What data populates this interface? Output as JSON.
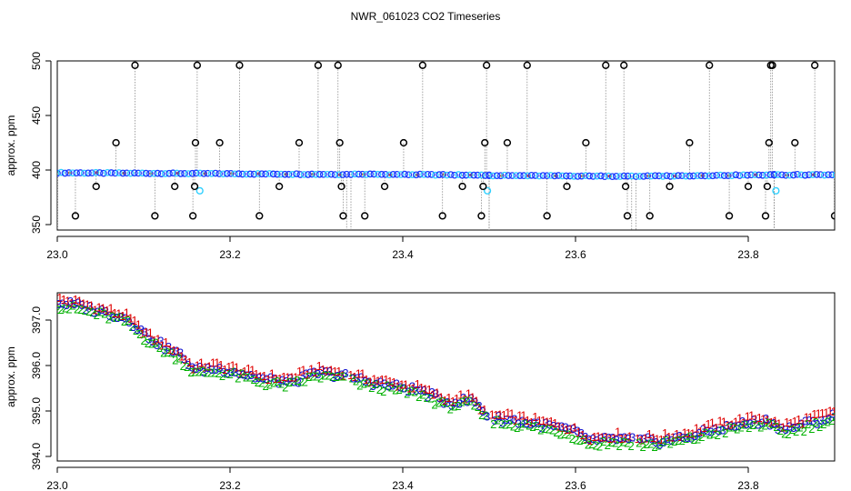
{
  "figure": {
    "title": "NWR_061023  CO2 Timeseries"
  },
  "chart_data": [
    {
      "type": "scatter",
      "panel": "top",
      "title": "",
      "xlabel": "",
      "ylabel": "approx. ppm",
      "xlim": [
        23.0,
        23.9
      ],
      "ylim": [
        345,
        500
      ],
      "xticks": [
        23.0,
        23.2,
        23.4,
        23.6,
        23.8
      ],
      "xtick_labels": [
        "23.0",
        "23.2",
        "23.4",
        "23.6",
        "23.8"
      ],
      "yticks": [
        350,
        400,
        450,
        500
      ],
      "ytick_labels": [
        "350",
        "400",
        "450",
        "500"
      ],
      "grid": false,
      "legend": "none",
      "colors": {
        "baseline": "#1a3cff",
        "baseline_alt": "#2fd0ff",
        "spike": "#000000",
        "line": "#8c8c8c",
        "mark": "#e06020"
      },
      "baseline_segments": [
        {
          "x": [
            23.0,
            23.335
          ],
          "y": [
            397.5,
            396.0
          ]
        },
        {
          "x": [
            23.34,
            23.5
          ],
          "y": [
            396.2,
            395.3
          ]
        },
        {
          "x": [
            23.5,
            23.665
          ],
          "y": [
            395.0,
            394.3
          ]
        },
        {
          "x": [
            23.67,
            23.83
          ],
          "y": [
            394.3,
            395.6
          ]
        },
        {
          "x": [
            23.83,
            23.915
          ],
          "y": [
            395.5,
            395.8
          ]
        }
      ],
      "cyan_points": [
        {
          "x": 23.165,
          "y": 381
        },
        {
          "x": 23.498,
          "y": 381
        },
        {
          "x": 23.832,
          "y": 381
        }
      ],
      "spikes": [
        {
          "x": 23.021,
          "y": 358
        },
        {
          "x": 23.045,
          "y": 385
        },
        {
          "x": 23.068,
          "y": 425
        },
        {
          "x": 23.09,
          "y": 496
        },
        {
          "x": 23.113,
          "y": 358
        },
        {
          "x": 23.136,
          "y": 385
        },
        {
          "x": 23.157,
          "y": 358
        },
        {
          "x": 23.159,
          "y": 385
        },
        {
          "x": 23.16,
          "y": 425
        },
        {
          "x": 23.162,
          "y": 496
        },
        {
          "x": 23.188,
          "y": 425
        },
        {
          "x": 23.211,
          "y": 496
        },
        {
          "x": 23.234,
          "y": 358
        },
        {
          "x": 23.257,
          "y": 385
        },
        {
          "x": 23.28,
          "y": 425
        },
        {
          "x": 23.302,
          "y": 496
        },
        {
          "x": 23.325,
          "y": 496
        },
        {
          "x": 23.327,
          "y": 425
        },
        {
          "x": 23.329,
          "y": 385
        },
        {
          "x": 23.331,
          "y": 358
        },
        {
          "x": 23.356,
          "y": 358
        },
        {
          "x": 23.379,
          "y": 385
        },
        {
          "x": 23.401,
          "y": 425
        },
        {
          "x": 23.423,
          "y": 496
        },
        {
          "x": 23.446,
          "y": 358
        },
        {
          "x": 23.469,
          "y": 385
        },
        {
          "x": 23.491,
          "y": 358
        },
        {
          "x": 23.493,
          "y": 385
        },
        {
          "x": 23.495,
          "y": 425
        },
        {
          "x": 23.497,
          "y": 496
        },
        {
          "x": 23.521,
          "y": 425
        },
        {
          "x": 23.544,
          "y": 496
        },
        {
          "x": 23.567,
          "y": 358
        },
        {
          "x": 23.59,
          "y": 385
        },
        {
          "x": 23.612,
          "y": 425
        },
        {
          "x": 23.635,
          "y": 496
        },
        {
          "x": 23.656,
          "y": 496
        },
        {
          "x": 23.658,
          "y": 385
        },
        {
          "x": 23.66,
          "y": 358
        },
        {
          "x": 23.686,
          "y": 358
        },
        {
          "x": 23.709,
          "y": 385
        },
        {
          "x": 23.732,
          "y": 425
        },
        {
          "x": 23.755,
          "y": 496
        },
        {
          "x": 23.778,
          "y": 358
        },
        {
          "x": 23.8,
          "y": 385
        },
        {
          "x": 23.82,
          "y": 358
        },
        {
          "x": 23.822,
          "y": 385
        },
        {
          "x": 23.824,
          "y": 425
        },
        {
          "x": 23.826,
          "y": 496
        },
        {
          "x": 23.828,
          "y": 496
        },
        {
          "x": 23.854,
          "y": 425
        },
        {
          "x": 23.877,
          "y": 496
        },
        {
          "x": 23.9,
          "y": 358
        }
      ]
    },
    {
      "type": "scatter",
      "panel": "bottom",
      "title": "",
      "xlabel": "",
      "ylabel": "approx. ppm",
      "xlim": [
        23.0,
        23.9
      ],
      "ylim": [
        393.9,
        397.6
      ],
      "xticks": [
        23.0,
        23.2,
        23.4,
        23.6,
        23.8
      ],
      "xtick_labels": [
        "23.0",
        "23.2",
        "23.4",
        "23.6",
        "23.8"
      ],
      "yticks": [
        394.0,
        395.0,
        396.0,
        397.0
      ],
      "ytick_labels": [
        "394.0",
        "395.0",
        "396.0",
        "397.0"
      ],
      "grid": false,
      "legend": "none",
      "marker_labels": [
        "1",
        "2",
        "3"
      ],
      "colors": {
        "1": "#e00000",
        "2": "#00b000",
        "3": "#1010d0"
      },
      "trend": {
        "x": [
          23.0,
          23.03,
          23.06,
          23.08,
          23.1,
          23.12,
          23.14,
          23.16,
          23.18,
          23.2,
          23.24,
          23.27,
          23.3,
          23.33,
          23.36,
          23.39,
          23.42,
          23.45,
          23.48,
          23.5,
          23.53,
          23.56,
          23.59,
          23.62,
          23.65,
          23.67,
          23.7,
          23.73,
          23.76,
          23.8,
          23.82,
          23.84,
          23.87,
          23.9,
          23.91
        ],
        "y": [
          397.4,
          397.3,
          397.15,
          397.05,
          396.7,
          396.45,
          396.25,
          395.9,
          395.95,
          395.9,
          395.7,
          395.65,
          395.85,
          395.8,
          395.65,
          395.55,
          395.45,
          395.2,
          395.25,
          394.85,
          394.8,
          394.7,
          394.6,
          394.35,
          394.4,
          394.35,
          394.35,
          394.45,
          394.6,
          394.75,
          394.8,
          394.6,
          394.75,
          394.9,
          395.0
        ]
      }
    }
  ]
}
